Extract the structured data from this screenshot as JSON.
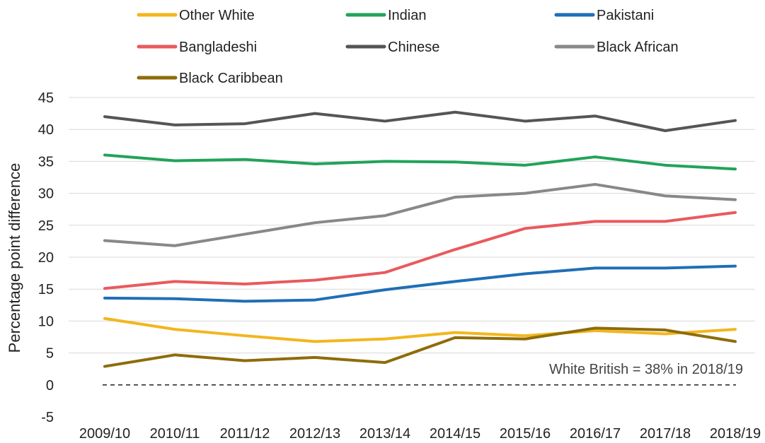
{
  "chart_data": {
    "type": "line",
    "categories": [
      "2009/10",
      "2010/11",
      "2011/12",
      "2012/13",
      "2013/14",
      "2014/15",
      "2015/16",
      "2016/17",
      "2017/18",
      "2018/19"
    ],
    "ylabel": "Percentage point difference",
    "ylim": [
      -5,
      45
    ],
    "yticks": [
      -5,
      0,
      5,
      10,
      15,
      20,
      25,
      30,
      35,
      40,
      45
    ],
    "grid": true,
    "legend_position": "top",
    "annotation": "White British = 38% in 2018/19",
    "reference_line": {
      "y": 0,
      "style": "dashed",
      "color": "#222222"
    },
    "series": [
      {
        "name": "Other White",
        "color": "#F2B61E",
        "values": [
          10.4,
          8.7,
          7.7,
          6.8,
          7.2,
          8.2,
          7.7,
          8.5,
          8.0,
          8.7
        ]
      },
      {
        "name": "Indian",
        "color": "#21A35A",
        "values": [
          36.0,
          35.1,
          35.3,
          34.6,
          35.0,
          34.9,
          34.4,
          35.7,
          34.4,
          33.8
        ]
      },
      {
        "name": "Pakistani",
        "color": "#1F6FB5",
        "values": [
          13.6,
          13.5,
          13.1,
          13.3,
          14.9,
          16.2,
          17.4,
          18.3,
          18.3,
          18.6
        ]
      },
      {
        "name": "Bangladeshi",
        "color": "#E85A5E",
        "values": [
          15.1,
          16.2,
          15.8,
          16.4,
          17.6,
          21.2,
          24.5,
          25.6,
          25.6,
          27.0
        ]
      },
      {
        "name": "Chinese",
        "color": "#555555",
        "values": [
          42.0,
          40.7,
          40.9,
          42.5,
          41.3,
          42.7,
          41.3,
          42.1,
          39.8,
          41.4
        ]
      },
      {
        "name": "Black African",
        "color": "#888888",
        "values": [
          22.6,
          21.8,
          23.6,
          25.4,
          26.5,
          29.4,
          30.0,
          31.4,
          29.6,
          29.0
        ]
      },
      {
        "name": "Black Caribbean",
        "color": "#8E6C0A",
        "values": [
          2.9,
          4.7,
          3.8,
          4.3,
          3.5,
          7.4,
          7.2,
          8.9,
          8.6,
          6.8
        ]
      }
    ]
  }
}
